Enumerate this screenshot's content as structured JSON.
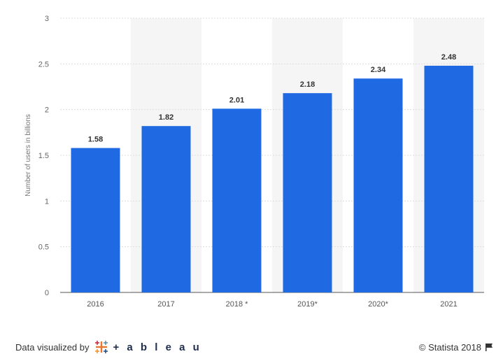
{
  "chart_data": {
    "type": "bar",
    "categories": [
      "2016",
      "2017",
      "2018 *",
      "2019*",
      "2020*",
      "2021"
    ],
    "values": [
      1.58,
      1.82,
      2.01,
      2.18,
      2.34,
      2.48
    ],
    "value_labels": [
      "1.58",
      "1.82",
      "2.01",
      "2.18",
      "2.34",
      "2.48"
    ],
    "ylabel": "Number of users in billions",
    "xlabel": "",
    "ylim": [
      0,
      3
    ],
    "yticks": [
      "0",
      "0.5",
      "1",
      "1.5",
      "2",
      "2.5",
      "3"
    ],
    "grid": true,
    "bar_color": "#1f6ae3",
    "alt_band_color": "#f5f5f5"
  },
  "footer": {
    "credit_text": "Data visualized by",
    "tableau_text": "+ a b l e a u",
    "copyright": "© Statista 2018",
    "flag_icon": "flag-icon"
  }
}
